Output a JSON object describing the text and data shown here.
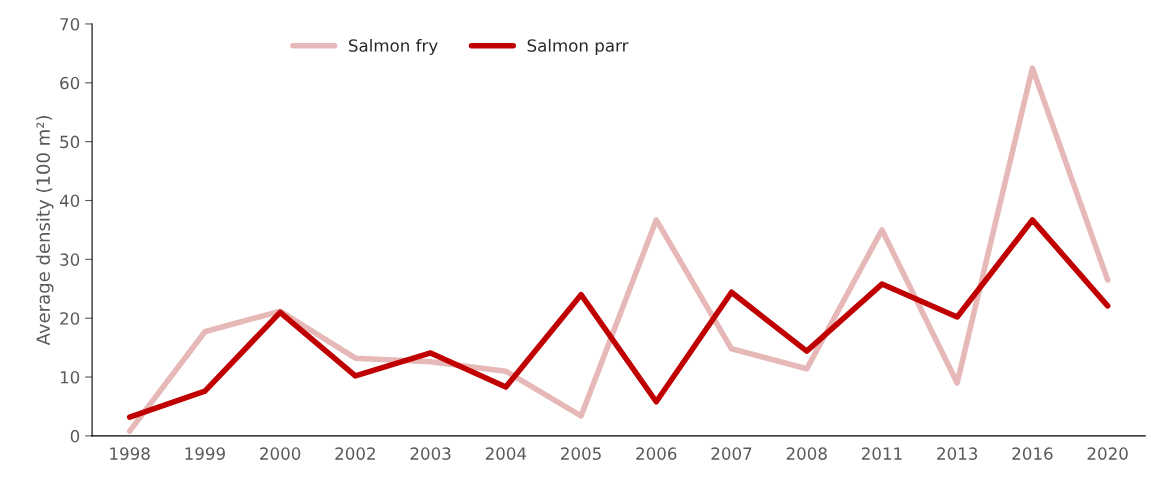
{
  "chart_data": {
    "type": "line",
    "ylabel": "Average density (100 m²)",
    "categories": [
      "1998",
      "1999",
      "2000",
      "2002",
      "2003",
      "2004",
      "2005",
      "2006",
      "2007",
      "2008",
      "2011",
      "2013",
      "2016",
      "2020"
    ],
    "series": [
      {
        "name": "Salmon fry",
        "color": "#e6b8b7",
        "values": [
          0.8,
          17.7,
          21.2,
          13.2,
          12.6,
          11.0,
          3.4,
          36.7,
          14.8,
          11.4,
          35.0,
          9.0,
          62.5,
          26.5
        ]
      },
      {
        "name": "Salmon parr",
        "color": "#c00000",
        "values": [
          3.2,
          7.6,
          21.0,
          10.2,
          14.1,
          8.3,
          24.0,
          5.8,
          24.4,
          14.4,
          25.8,
          20.2,
          36.7,
          22.1
        ]
      }
    ],
    "ylim": [
      0,
      70
    ],
    "yticks": [
      0,
      10,
      20,
      30,
      40,
      50,
      60,
      70
    ],
    "grid": false,
    "legend": "top",
    "marker": "none",
    "line_style": "solid"
  }
}
